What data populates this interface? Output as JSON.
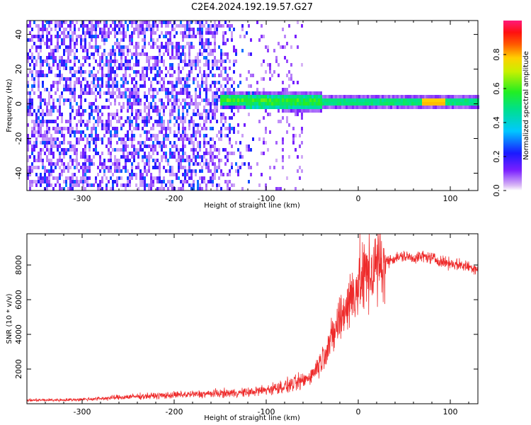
{
  "title": "C2E4.2024.192.19.57.G27",
  "chart_data": [
    {
      "type": "heatmap",
      "xlabel": "Height of straight line (km)",
      "ylabel": "Frequency (Hz)",
      "xlim": [
        -360,
        130
      ],
      "ylim": [
        -50,
        48
      ],
      "xticks": [
        -300,
        -200,
        -100,
        0,
        100
      ],
      "yticks": [
        -40,
        -20,
        0,
        20,
        40
      ],
      "colorbar": {
        "label": "Normalized spectral amplitude",
        "range": [
          0.0,
          1.0
        ],
        "ticks": [
          "0.0",
          "0.2",
          "0.4",
          "0.6",
          "0.8"
        ],
        "colormap": "rainbow (violet-blue-cyan-green-yellow-red-magenta)"
      },
      "features": [
        {
          "region": "x from -360 to -120",
          "frequency_spread": "broad, -50 to 48 Hz",
          "amplitude": "low (0.05-0.2)"
        },
        {
          "region": "x from -150 to 130",
          "frequency_center": "about 0 to 2 Hz",
          "amplitude": "high (0.5-0.9)"
        }
      ]
    },
    {
      "type": "line",
      "xlabel": "Height of straight line (km)",
      "ylabel": "SNR (10 * v/v)",
      "xlim": [
        -360,
        130
      ],
      "ylim": [
        0,
        9800
      ],
      "xticks": [
        -300,
        -200,
        -100,
        0,
        100
      ],
      "yticks": [
        2000,
        4000,
        6000,
        8000
      ],
      "series": [
        {
          "color": "#ee2b2b",
          "x": [
            -360,
            -320,
            -300,
            -280,
            -250,
            -200,
            -150,
            -120,
            -100,
            -80,
            -60,
            -50,
            -40,
            -35,
            -30,
            -25,
            -20,
            -15,
            -10,
            -5,
            0,
            5,
            10,
            15,
            20,
            30,
            40,
            50,
            60,
            70,
            80,
            90,
            100,
            110,
            120,
            130
          ],
          "values": [
            200,
            220,
            250,
            300,
            400,
            500,
            600,
            650,
            800,
            1000,
            1300,
            1700,
            2500,
            3200,
            3600,
            4200,
            4900,
            5400,
            5900,
            6400,
            6900,
            7200,
            7500,
            7700,
            7900,
            8200,
            8400,
            8500,
            8400,
            8500,
            8400,
            8200,
            8100,
            8000,
            7900,
            7800
          ]
        }
      ]
    }
  ]
}
